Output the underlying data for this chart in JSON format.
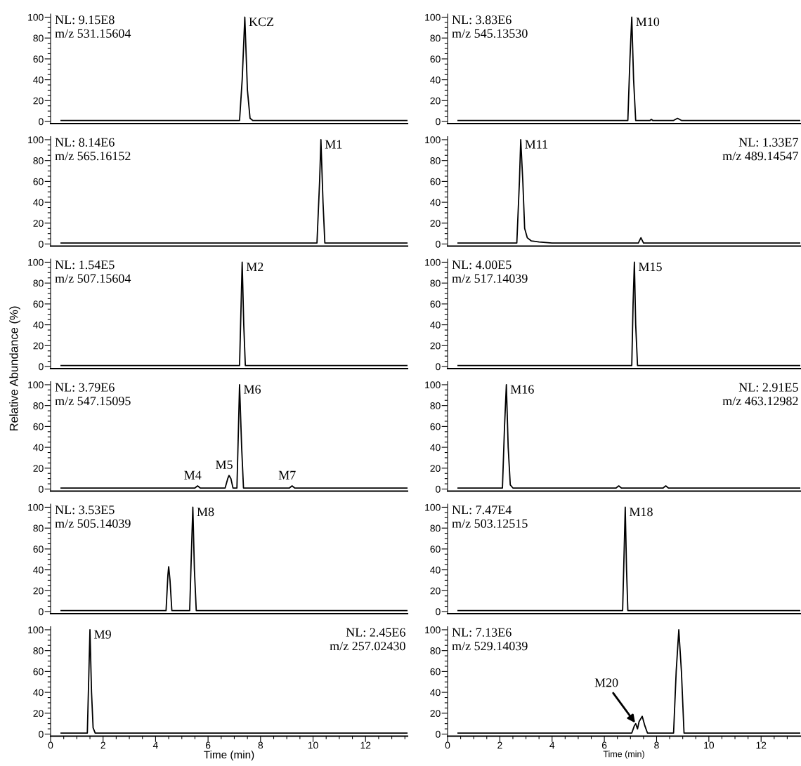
{
  "chart_data": [
    {
      "type": "line",
      "xlim": [
        0,
        13.6
      ],
      "ylim": [
        -2,
        103
      ],
      "tick_labels": "y",
      "yticks": [
        0,
        {
          "value": 5,
          "label": null
        },
        {
          "value": 10,
          "label": null
        },
        {
          "value": 15,
          "label": null
        },
        20,
        {
          "value": 25,
          "label": null
        },
        {
          "value": 30,
          "label": null
        },
        {
          "value": 35,
          "label": null
        },
        40,
        {
          "value": 45,
          "label": null
        },
        {
          "value": 50,
          "label": null
        },
        {
          "value": 55,
          "label": null
        },
        60,
        {
          "value": 65,
          "label": null
        },
        {
          "value": 70,
          "label": null
        },
        {
          "value": 75,
          "label": null
        },
        80,
        {
          "value": 85,
          "label": null
        },
        {
          "value": 90,
          "label": null
        },
        {
          "value": 95,
          "label": null
        },
        100
      ],
      "series": [
        {
          "color": "#000000",
          "x": [
            0.4,
            7.2,
            7.3,
            7.4,
            7.5,
            7.6,
            7.7,
            13.6
          ],
          "values": [
            1,
            1,
            40,
            100,
            30,
            3,
            1,
            1
          ]
        }
      ],
      "annotations": [
        "NL: 9.15E8",
        "m/z 531.15604",
        {
          "text": "KCZ",
          "x": 7.4,
          "y": 100
        }
      ]
    },
    {
      "type": "line",
      "xlim": [
        0,
        13.5
      ],
      "ylim": [
        -2,
        103
      ],
      "tick_labels": "y",
      "yticks": [
        0,
        {
          "value": 5,
          "label": null
        },
        {
          "value": 10,
          "label": null
        },
        {
          "value": 15,
          "label": null
        },
        20,
        {
          "value": 25,
          "label": null
        },
        {
          "value": 30,
          "label": null
        },
        {
          "value": 35,
          "label": null
        },
        40,
        {
          "value": 45,
          "label": null
        },
        {
          "value": 50,
          "label": null
        },
        {
          "value": 55,
          "label": null
        },
        60,
        {
          "value": 65,
          "label": null
        },
        {
          "value": 70,
          "label": null
        },
        {
          "value": 75,
          "label": null
        },
        80,
        {
          "value": 85,
          "label": null
        },
        {
          "value": 90,
          "label": null
        },
        {
          "value": 95,
          "label": null
        },
        100
      ],
      "series": [
        {
          "color": "#000000",
          "x": [
            0.4,
            6.9,
            6.98,
            7.05,
            7.12,
            7.2,
            7.75,
            7.8,
            7.85,
            8.65,
            8.8,
            8.95,
            13.5
          ],
          "values": [
            1,
            1,
            60,
            100,
            40,
            1,
            1,
            2,
            1,
            1,
            3,
            1,
            1
          ]
        }
      ],
      "annotations": [
        "NL: 3.83E6",
        "m/z 545.13530",
        {
          "text": "M10",
          "x": 7.05,
          "y": 100
        }
      ]
    },
    {
      "type": "line",
      "xlim": [
        0,
        13.6
      ],
      "ylim": [
        -2,
        103
      ],
      "tick_labels": "y",
      "yticks": [
        0,
        {
          "value": 5,
          "label": null
        },
        {
          "value": 10,
          "label": null
        },
        {
          "value": 15,
          "label": null
        },
        20,
        {
          "value": 25,
          "label": null
        },
        {
          "value": 30,
          "label": null
        },
        {
          "value": 35,
          "label": null
        },
        40,
        {
          "value": 45,
          "label": null
        },
        {
          "value": 50,
          "label": null
        },
        {
          "value": 55,
          "label": null
        },
        60,
        {
          "value": 65,
          "label": null
        },
        {
          "value": 70,
          "label": null
        },
        {
          "value": 75,
          "label": null
        },
        80,
        {
          "value": 85,
          "label": null
        },
        {
          "value": 90,
          "label": null
        },
        {
          "value": 95,
          "label": null
        },
        100
      ],
      "series": [
        {
          "color": "#000000",
          "x": [
            0.4,
            10.15,
            10.25,
            10.3,
            10.38,
            10.45,
            13.6
          ],
          "values": [
            1,
            1,
            60,
            100,
            40,
            1,
            1
          ]
        }
      ],
      "annotations": [
        "NL: 8.14E6",
        "m/z 565.16152",
        {
          "text": "M1",
          "x": 10.3,
          "y": 100
        }
      ]
    },
    {
      "type": "line",
      "xlim": [
        0,
        13.5
      ],
      "ylim": [
        -2,
        103
      ],
      "tick_labels": "y",
      "yticks": [
        0,
        {
          "value": 5,
          "label": null
        },
        {
          "value": 10,
          "label": null
        },
        {
          "value": 15,
          "label": null
        },
        20,
        {
          "value": 25,
          "label": null
        },
        {
          "value": 30,
          "label": null
        },
        {
          "value": 35,
          "label": null
        },
        40,
        {
          "value": 45,
          "label": null
        },
        {
          "value": 50,
          "label": null
        },
        {
          "value": 55,
          "label": null
        },
        60,
        {
          "value": 65,
          "label": null
        },
        {
          "value": 70,
          "label": null
        },
        {
          "value": 75,
          "label": null
        },
        80,
        {
          "value": 85,
          "label": null
        },
        {
          "value": 90,
          "label": null
        },
        {
          "value": 95,
          "label": null
        },
        100
      ],
      "series": [
        {
          "color": "#000000",
          "x": [
            0.4,
            2.65,
            2.75,
            2.8,
            2.88,
            2.95,
            3.05,
            3.2,
            3.5,
            4.0,
            7.3,
            7.4,
            7.5,
            13.5
          ],
          "values": [
            1,
            1,
            60,
            100,
            60,
            15,
            6,
            3,
            2,
            1,
            1,
            6,
            1,
            1
          ]
        }
      ],
      "annotations": [
        "NL: 1.33E7",
        "m/z 489.14547",
        {
          "text": "M11",
          "x": 2.8,
          "y": 100
        }
      ]
    },
    {
      "type": "line",
      "xlim": [
        0,
        13.6
      ],
      "ylim": [
        -2,
        103
      ],
      "tick_labels": "y",
      "ylabel": "Relative Abundance (%)",
      "yticks": [
        0,
        {
          "value": 5,
          "label": null
        },
        {
          "value": 10,
          "label": null
        },
        {
          "value": 15,
          "label": null
        },
        20,
        {
          "value": 25,
          "label": null
        },
        {
          "value": 30,
          "label": null
        },
        {
          "value": 35,
          "label": null
        },
        40,
        {
          "value": 45,
          "label": null
        },
        {
          "value": 50,
          "label": null
        },
        {
          "value": 55,
          "label": null
        },
        60,
        {
          "value": 65,
          "label": null
        },
        {
          "value": 70,
          "label": null
        },
        {
          "value": 75,
          "label": null
        },
        80,
        {
          "value": 85,
          "label": null
        },
        {
          "value": 90,
          "label": null
        },
        {
          "value": 95,
          "label": null
        },
        100
      ],
      "series": [
        {
          "color": "#000000",
          "x": [
            0.4,
            7.2,
            7.26,
            7.3,
            7.36,
            7.42,
            13.6
          ],
          "values": [
            1,
            1,
            60,
            100,
            40,
            1,
            1
          ]
        }
      ],
      "annotations": [
        "NL: 1.54E5",
        "m/z 507.15604",
        {
          "text": "M2",
          "x": 7.3,
          "y": 100
        }
      ]
    },
    {
      "type": "line",
      "xlim": [
        0,
        13.5
      ],
      "ylim": [
        -2,
        103
      ],
      "tick_labels": "y",
      "yticks": [
        0,
        {
          "value": 5,
          "label": null
        },
        {
          "value": 10,
          "label": null
        },
        {
          "value": 15,
          "label": null
        },
        20,
        {
          "value": 25,
          "label": null
        },
        {
          "value": 30,
          "label": null
        },
        {
          "value": 35,
          "label": null
        },
        40,
        {
          "value": 45,
          "label": null
        },
        {
          "value": 50,
          "label": null
        },
        {
          "value": 55,
          "label": null
        },
        60,
        {
          "value": 65,
          "label": null
        },
        {
          "value": 70,
          "label": null
        },
        {
          "value": 75,
          "label": null
        },
        80,
        {
          "value": 85,
          "label": null
        },
        {
          "value": 90,
          "label": null
        },
        {
          "value": 95,
          "label": null
        },
        100
      ],
      "series": [
        {
          "color": "#000000",
          "x": [
            0.4,
            7.05,
            7.1,
            7.15,
            7.2,
            7.27,
            13.5
          ],
          "values": [
            1,
            1,
            60,
            100,
            40,
            1,
            1
          ]
        }
      ],
      "annotations": [
        "NL: 4.00E5",
        "m/z 517.14039",
        {
          "text": "M15",
          "x": 7.15,
          "y": 100
        }
      ]
    },
    {
      "type": "line",
      "xlim": [
        0,
        13.6
      ],
      "ylim": [
        -2,
        103
      ],
      "tick_labels": "y",
      "yticks": [
        0,
        {
          "value": 5,
          "label": null
        },
        {
          "value": 10,
          "label": null
        },
        {
          "value": 15,
          "label": null
        },
        20,
        {
          "value": 25,
          "label": null
        },
        {
          "value": 30,
          "label": null
        },
        {
          "value": 35,
          "label": null
        },
        40,
        {
          "value": 45,
          "label": null
        },
        {
          "value": 50,
          "label": null
        },
        {
          "value": 55,
          "label": null
        },
        60,
        {
          "value": 65,
          "label": null
        },
        {
          "value": 70,
          "label": null
        },
        {
          "value": 75,
          "label": null
        },
        80,
        {
          "value": 85,
          "label": null
        },
        {
          "value": 90,
          "label": null
        },
        {
          "value": 95,
          "label": null
        },
        100
      ],
      "series": [
        {
          "color": "#000000",
          "x": [
            0.4,
            5.5,
            5.6,
            5.7,
            6.65,
            6.75,
            6.8,
            6.87,
            6.95,
            7.1,
            7.16,
            7.2,
            7.28,
            7.35,
            9.1,
            9.2,
            9.3,
            13.6
          ],
          "values": [
            1,
            1,
            3,
            1,
            1,
            10,
            13,
            10,
            1,
            1,
            60,
            100,
            40,
            1,
            1,
            3,
            1,
            1
          ]
        }
      ],
      "annotations": [
        "NL: 3.79E6",
        "m/z 547.15095",
        {
          "text": "M4",
          "x": 5.6,
          "y": 3
        },
        {
          "text": "M5",
          "x": 6.8,
          "y": 13
        },
        {
          "text": "M6",
          "x": 7.2,
          "y": 100
        },
        {
          "text": "M7",
          "x": 9.2,
          "y": 3
        }
      ]
    },
    {
      "type": "line",
      "xlim": [
        0,
        13.5
      ],
      "ylim": [
        -2,
        103
      ],
      "tick_labels": "y",
      "yticks": [
        0,
        {
          "value": 5,
          "label": null
        },
        {
          "value": 10,
          "label": null
        },
        {
          "value": 15,
          "label": null
        },
        20,
        {
          "value": 25,
          "label": null
        },
        {
          "value": 30,
          "label": null
        },
        {
          "value": 35,
          "label": null
        },
        40,
        {
          "value": 45,
          "label": null
        },
        {
          "value": 50,
          "label": null
        },
        {
          "value": 55,
          "label": null
        },
        60,
        {
          "value": 65,
          "label": null
        },
        {
          "value": 70,
          "label": null
        },
        {
          "value": 75,
          "label": null
        },
        80,
        {
          "value": 85,
          "label": null
        },
        {
          "value": 90,
          "label": null
        },
        {
          "value": 95,
          "label": null
        },
        100
      ],
      "series": [
        {
          "color": "#000000",
          "x": [
            0.4,
            2.1,
            2.18,
            2.25,
            2.32,
            2.4,
            2.5,
            6.45,
            6.55,
            6.65,
            8.25,
            8.35,
            8.45,
            13.5
          ],
          "values": [
            1,
            1,
            60,
            100,
            40,
            4,
            1,
            1,
            3,
            1,
            1,
            3,
            1,
            1
          ]
        }
      ],
      "annotations": [
        "NL: 2.91E5",
        "m/z 463.12982",
        {
          "text": "M16",
          "x": 2.25,
          "y": 100
        }
      ]
    },
    {
      "type": "line",
      "xlim": [
        0,
        13.6
      ],
      "ylim": [
        -2,
        103
      ],
      "tick_labels": "y",
      "yticks": [
        0,
        {
          "value": 5,
          "label": null
        },
        {
          "value": 10,
          "label": null
        },
        {
          "value": 15,
          "label": null
        },
        20,
        {
          "value": 25,
          "label": null
        },
        {
          "value": 30,
          "label": null
        },
        {
          "value": 35,
          "label": null
        },
        40,
        {
          "value": 45,
          "label": null
        },
        {
          "value": 50,
          "label": null
        },
        {
          "value": 55,
          "label": null
        },
        60,
        {
          "value": 65,
          "label": null
        },
        {
          "value": 70,
          "label": null
        },
        {
          "value": 75,
          "label": null
        },
        80,
        {
          "value": 85,
          "label": null
        },
        {
          "value": 90,
          "label": null
        },
        {
          "value": 95,
          "label": null
        },
        100
      ],
      "series": [
        {
          "color": "#000000",
          "x": [
            0.4,
            4.4,
            4.47,
            4.5,
            4.55,
            4.62,
            5.3,
            5.37,
            5.42,
            5.48,
            5.55,
            13.6
          ],
          "values": [
            1,
            1,
            35,
            43,
            30,
            1,
            1,
            60,
            100,
            40,
            1,
            1
          ]
        }
      ],
      "annotations": [
        "NL: 3.53E5",
        "m/z 505.14039",
        {
          "text": "M8",
          "x": 5.42,
          "y": 100
        }
      ]
    },
    {
      "type": "line",
      "xlim": [
        0,
        13.5
      ],
      "ylim": [
        -2,
        103
      ],
      "tick_labels": "y",
      "yticks": [
        0,
        {
          "value": 5,
          "label": null
        },
        {
          "value": 10,
          "label": null
        },
        {
          "value": 15,
          "label": null
        },
        20,
        {
          "value": 25,
          "label": null
        },
        {
          "value": 30,
          "label": null
        },
        {
          "value": 35,
          "label": null
        },
        40,
        {
          "value": 45,
          "label": null
        },
        {
          "value": 50,
          "label": null
        },
        {
          "value": 55,
          "label": null
        },
        60,
        {
          "value": 65,
          "label": null
        },
        {
          "value": 70,
          "label": null
        },
        {
          "value": 75,
          "label": null
        },
        80,
        {
          "value": 85,
          "label": null
        },
        {
          "value": 90,
          "label": null
        },
        {
          "value": 95,
          "label": null
        },
        100
      ],
      "series": [
        {
          "color": "#000000",
          "x": [
            0.4,
            6.7,
            6.76,
            6.8,
            6.85,
            6.9,
            13.5
          ],
          "values": [
            1,
            1,
            60,
            100,
            40,
            1,
            1
          ]
        }
      ],
      "annotations": [
        "NL: 7.47E4",
        "m/z 503.12515",
        {
          "text": "M18",
          "x": 6.8,
          "y": 100
        }
      ]
    },
    {
      "type": "line",
      "xlim": [
        0,
        13.6
      ],
      "ylim": [
        -2,
        103
      ],
      "xlabel": "Time (min)",
      "yticks": [
        0,
        {
          "value": 5,
          "label": null
        },
        {
          "value": 10,
          "label": null
        },
        {
          "value": 15,
          "label": null
        },
        20,
        {
          "value": 25,
          "label": null
        },
        {
          "value": 30,
          "label": null
        },
        {
          "value": 35,
          "label": null
        },
        40,
        {
          "value": 45,
          "label": null
        },
        {
          "value": 50,
          "label": null
        },
        {
          "value": 55,
          "label": null
        },
        60,
        {
          "value": 65,
          "label": null
        },
        {
          "value": 70,
          "label": null
        },
        {
          "value": 75,
          "label": null
        },
        80,
        {
          "value": 85,
          "label": null
        },
        {
          "value": 90,
          "label": null
        },
        {
          "value": 95,
          "label": null
        },
        100
      ],
      "xticks": [
        0,
        {
          "value": 0.5,
          "label": null
        },
        {
          "value": 1,
          "label": null
        },
        {
          "value": 1.5,
          "label": null
        },
        2,
        {
          "value": 2.5,
          "label": null
        },
        {
          "value": 3,
          "label": null
        },
        {
          "value": 3.5,
          "label": null
        },
        4,
        {
          "value": 4.5,
          "label": null
        },
        {
          "value": 5,
          "label": null
        },
        {
          "value": 5.5,
          "label": null
        },
        6,
        {
          "value": 6.5,
          "label": null
        },
        {
          "value": 7,
          "label": null
        },
        {
          "value": 7.5,
          "label": null
        },
        8,
        {
          "value": 8.5,
          "label": null
        },
        {
          "value": 9,
          "label": null
        },
        {
          "value": 9.5,
          "label": null
        },
        10,
        {
          "value": 10.5,
          "label": null
        },
        {
          "value": 11,
          "label": null
        },
        {
          "value": 11.5,
          "label": null
        },
        12,
        {
          "value": 12.5,
          "label": null
        },
        {
          "value": 13,
          "label": null
        },
        {
          "value": 13.5,
          "label": null
        }
      ],
      "series": [
        {
          "color": "#000000",
          "x": [
            0.4,
            1.4,
            1.46,
            1.5,
            1.56,
            1.62,
            1.7,
            13.6
          ],
          "values": [
            1,
            1,
            60,
            100,
            40,
            6,
            1,
            1
          ]
        }
      ],
      "annotations": [
        "NL: 2.45E6",
        "m/z 257.02430",
        {
          "text": "M9",
          "x": 1.5,
          "y": 100
        }
      ]
    },
    {
      "type": "line",
      "xlim": [
        0,
        13.5
      ],
      "ylim": [
        -2,
        103
      ],
      "xlabel": "Time (min)",
      "yticks": [
        0,
        {
          "value": 5,
          "label": null
        },
        {
          "value": 10,
          "label": null
        },
        {
          "value": 15,
          "label": null
        },
        20,
        {
          "value": 25,
          "label": null
        },
        {
          "value": 30,
          "label": null
        },
        {
          "value": 35,
          "label": null
        },
        40,
        {
          "value": 45,
          "label": null
        },
        {
          "value": 50,
          "label": null
        },
        {
          "value": 55,
          "label": null
        },
        60,
        {
          "value": 65,
          "label": null
        },
        {
          "value": 70,
          "label": null
        },
        {
          "value": 75,
          "label": null
        },
        80,
        {
          "value": 85,
          "label": null
        },
        {
          "value": 90,
          "label": null
        },
        {
          "value": 95,
          "label": null
        },
        100
      ],
      "xticks": [
        0,
        {
          "value": 0.5,
          "label": null
        },
        {
          "value": 1,
          "label": null
        },
        {
          "value": 1.5,
          "label": null
        },
        2,
        {
          "value": 2.5,
          "label": null
        },
        {
          "value": 3,
          "label": null
        },
        {
          "value": 3.5,
          "label": null
        },
        4,
        {
          "value": 4.5,
          "label": null
        },
        {
          "value": 5,
          "label": null
        },
        {
          "value": 5.5,
          "label": null
        },
        6,
        {
          "value": 6.5,
          "label": null
        },
        {
          "value": 7,
          "label": null
        },
        {
          "value": 7.5,
          "label": null
        },
        8,
        {
          "value": 8.5,
          "label": null
        },
        {
          "value": 9,
          "label": null
        },
        {
          "value": 9.5,
          "label": null
        },
        10,
        {
          "value": 10.5,
          "label": null
        },
        {
          "value": 11,
          "label": null
        },
        {
          "value": 11.5,
          "label": null
        },
        12,
        {
          "value": 12.5,
          "label": null
        },
        {
          "value": 13,
          "label": null
        }
      ],
      "series": [
        {
          "color": "#000000",
          "x": [
            0.4,
            7.05,
            7.15,
            7.2,
            7.27,
            7.33,
            7.45,
            7.55,
            7.65,
            8.65,
            8.75,
            8.85,
            8.95,
            9.05,
            13.5
          ],
          "values": [
            1,
            1,
            8,
            10,
            5,
            12,
            17,
            8,
            1,
            1,
            60,
            100,
            60,
            1,
            1
          ]
        }
      ],
      "annotations": [
        "NL: 7.13E6",
        "m/z 529.14039",
        {
          "text": "M20",
          "x": 7.2,
          "y": 10
        }
      ]
    }
  ]
}
